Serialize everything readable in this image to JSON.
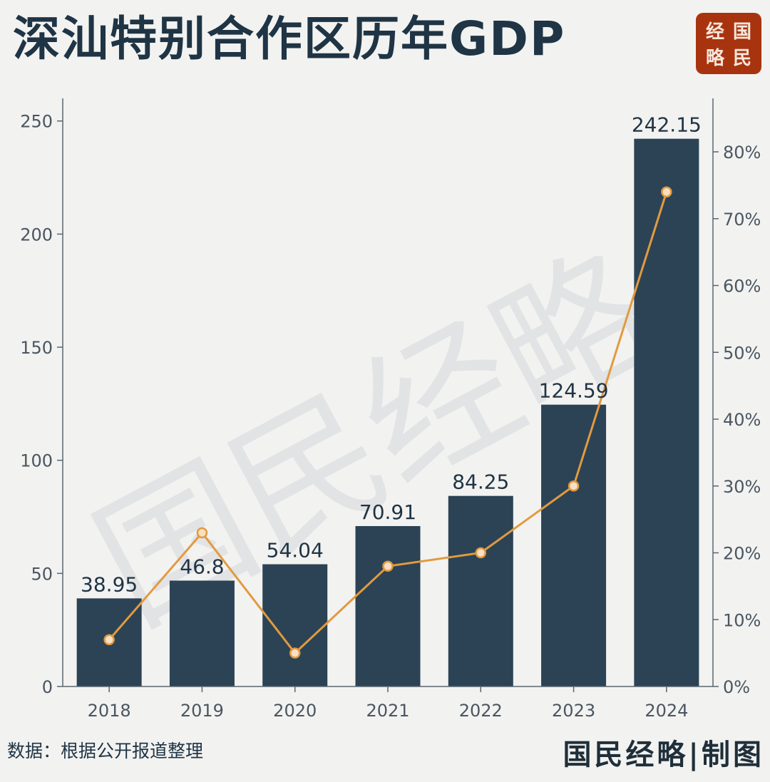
{
  "title": "深汕特别合作区历年GDP",
  "logo": {
    "chars": [
      "经",
      "国",
      "略",
      "民"
    ],
    "color": "#a8340f"
  },
  "source": "数据：根据公开报道整理",
  "credit": "国民经略|制图",
  "colors": {
    "bar": "#2b4355",
    "line": "#e29a3f",
    "point_fill": "#f7e0c4",
    "axis": "#5a6670"
  },
  "chart_data": {
    "type": "bar",
    "categories": [
      "2018",
      "2019",
      "2020",
      "2021",
      "2022",
      "2023",
      "2024"
    ],
    "series": [
      {
        "values": [
          38.95,
          46.8,
          54.04,
          70.91,
          84.25,
          124.59,
          242.15
        ],
        "type": "bar",
        "axis": "left"
      },
      {
        "values": [
          7,
          23,
          5,
          18,
          20,
          30,
          74
        ],
        "type": "line",
        "axis": "right",
        "unit": "%"
      }
    ],
    "data_labels": [
      "38.95",
      "46.8",
      "54.04",
      "70.91",
      "84.25",
      "124.59",
      "242.15"
    ],
    "ylim": [
      0,
      260
    ],
    "yticks": [
      0,
      50,
      100,
      150,
      200,
      250
    ],
    "ylim_right": [
      0,
      88
    ],
    "yticks_right": [
      "0%",
      "10%",
      "20%",
      "30%",
      "40%",
      "50%",
      "60%",
      "70%",
      "80%"
    ],
    "xlabel": "",
    "ylabel": "",
    "grid": false,
    "watermark": "国民经略"
  }
}
